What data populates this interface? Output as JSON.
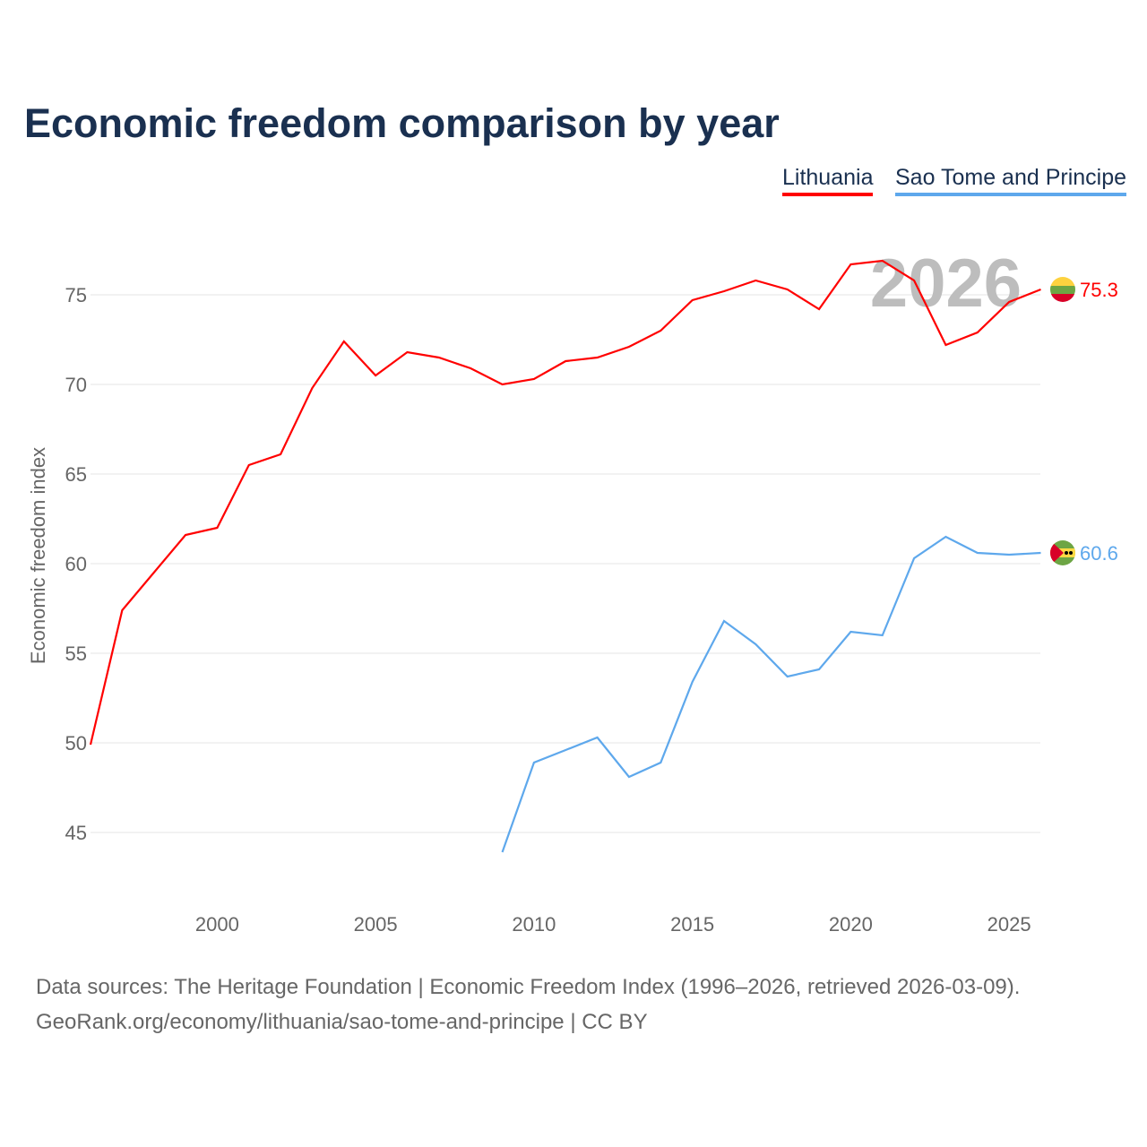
{
  "chart_data": {
    "type": "line",
    "title": "Economic freedom comparison by year",
    "xlabel": "",
    "ylabel": "Economic freedom index",
    "xlim": [
      1996,
      2026
    ],
    "ylim": [
      41,
      79
    ],
    "x_ticks": [
      2000,
      2005,
      2010,
      2015,
      2020,
      2025
    ],
    "y_ticks": [
      45,
      50,
      55,
      60,
      65,
      70,
      75
    ],
    "grid": true,
    "legend_placement": "top-right",
    "watermark_year": "2026",
    "series": [
      {
        "name": "Lithuania",
        "color": "#ff0000",
        "end_label": "75.3",
        "flag": "lithuania-flag",
        "x": [
          1996,
          1997,
          1998,
          1999,
          2000,
          2001,
          2002,
          2003,
          2004,
          2005,
          2006,
          2007,
          2008,
          2009,
          2010,
          2011,
          2012,
          2013,
          2014,
          2015,
          2016,
          2017,
          2018,
          2019,
          2020,
          2021,
          2022,
          2023,
          2024,
          2025,
          2026
        ],
        "values": [
          49.9,
          57.4,
          59.5,
          61.6,
          62.0,
          65.5,
          66.1,
          69.8,
          72.4,
          70.5,
          71.8,
          71.5,
          70.9,
          70.0,
          70.3,
          71.3,
          71.5,
          72.1,
          73.0,
          74.7,
          75.2,
          75.8,
          75.3,
          74.2,
          76.7,
          76.9,
          75.8,
          72.2,
          72.9,
          74.6,
          75.3
        ]
      },
      {
        "name": "Sao Tome and Principe",
        "color": "#5ea8ec",
        "end_label": "60.6",
        "flag": "sao-tome-flag",
        "x": [
          2009,
          2010,
          2011,
          2012,
          2013,
          2014,
          2015,
          2016,
          2017,
          2018,
          2019,
          2020,
          2021,
          2022,
          2023,
          2024,
          2025,
          2026
        ],
        "values": [
          43.9,
          48.9,
          49.6,
          50.3,
          48.1,
          48.9,
          53.4,
          56.8,
          55.5,
          53.7,
          54.1,
          56.2,
          56.0,
          60.3,
          61.5,
          60.6,
          60.5,
          60.6
        ]
      }
    ]
  },
  "footer": {
    "line1": "Data sources: The Heritage Foundation | Economic Freedom Index (1996–2026, retrieved 2026-03-09).",
    "line2": "GeoRank.org/economy/lithuania/sao-tome-and-principe | CC BY"
  }
}
